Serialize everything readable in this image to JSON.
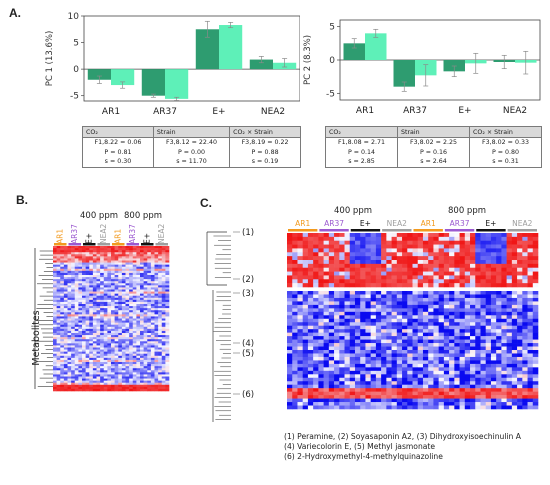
{
  "panels": {
    "a": "A.",
    "b": "B.",
    "c": "C."
  },
  "colors": {
    "dark": "#2e9c70",
    "light": "#5ef0b8",
    "ar1": "#f29a1e",
    "ar37": "#9b59d0",
    "eplus": "#111111",
    "nea2": "#9e9e9e",
    "low": "#0a0af0",
    "high": "#f01414"
  },
  "chart_data": [
    {
      "type": "bar",
      "ylabel": "PC 1 (13.6%)",
      "categories": [
        "AR1",
        "AR37",
        "E+",
        "NEA2"
      ],
      "ylim": [
        -6,
        10
      ],
      "yticks": [
        -5,
        0,
        5,
        10
      ],
      "series": [
        {
          "values": [
            -2.0,
            -5.0,
            7.5,
            1.8
          ],
          "errors": [
            0.7,
            0.3,
            1.5,
            0.6
          ]
        },
        {
          "values": [
            -3.0,
            -5.6,
            8.3,
            1.2
          ],
          "errors": [
            0.6,
            0.3,
            0.5,
            0.8
          ]
        }
      ]
    },
    {
      "type": "bar",
      "ylabel": "PC 2 (8.3%)",
      "categories": [
        "AR1",
        "AR37",
        "E+",
        "NEA2"
      ],
      "ylim": [
        -6,
        6
      ],
      "yticks": [
        -5,
        0,
        5
      ],
      "series": [
        {
          "values": [
            2.5,
            -4.0,
            -1.7,
            -0.3
          ],
          "errors": [
            0.7,
            0.7,
            0.8,
            1.0
          ]
        },
        {
          "values": [
            4.0,
            -2.3,
            -0.5,
            -0.4
          ],
          "errors": [
            0.6,
            1.6,
            1.5,
            1.7
          ]
        }
      ]
    }
  ],
  "tables": [
    {
      "headers": [
        "CO₂",
        "Strain",
        "CO₂ × Strain"
      ],
      "rows": [
        [
          "F1,8.22 = 0.06",
          "F3,8.12 = 22.40",
          "F3,8.19 = 0.22"
        ],
        [
          "P = 0.81",
          "P = 0.00",
          "P = 0.88"
        ],
        [
          "s = 0.30",
          "s = 11.70",
          "s = 0.19"
        ]
      ]
    },
    {
      "headers": [
        "CO₂",
        "Strain",
        "CO₂ × Strain"
      ],
      "rows": [
        [
          "F1,8.08 = 2.71",
          "F3,8.02 = 2.25",
          "F3,8.02 = 0.33"
        ],
        [
          "P = 0.14",
          "P = 0.16",
          "P = 0.80"
        ],
        [
          "s = 2.85",
          "s = 2.64",
          "s = 0.31"
        ]
      ]
    }
  ],
  "heatmap_b": {
    "conditions": [
      "400 ppm",
      "800 ppm"
    ],
    "strains": [
      "AR1",
      "AR37",
      "E+",
      "NEA2"
    ],
    "ylabel": "Metabolites"
  },
  "heatmap_c": {
    "conditions": [
      "400 ppm",
      "800 ppm"
    ],
    "strains": [
      "AR1",
      "AR37",
      "E+",
      "NEA2"
    ],
    "cluster_marks": [
      "(1)",
      "(2)",
      "(3)",
      "(4)",
      "(5)",
      "(6)"
    ]
  },
  "compound_legend": [
    "(1) Peramine, (2) Soyasaponin A2, (3) Dihydroxyisoechinulin A",
    "(4) Variecolorin E, (5) Methyl jasmonate",
    "(6) 2-Hydroxymethyl-4-methylquinazoline"
  ]
}
